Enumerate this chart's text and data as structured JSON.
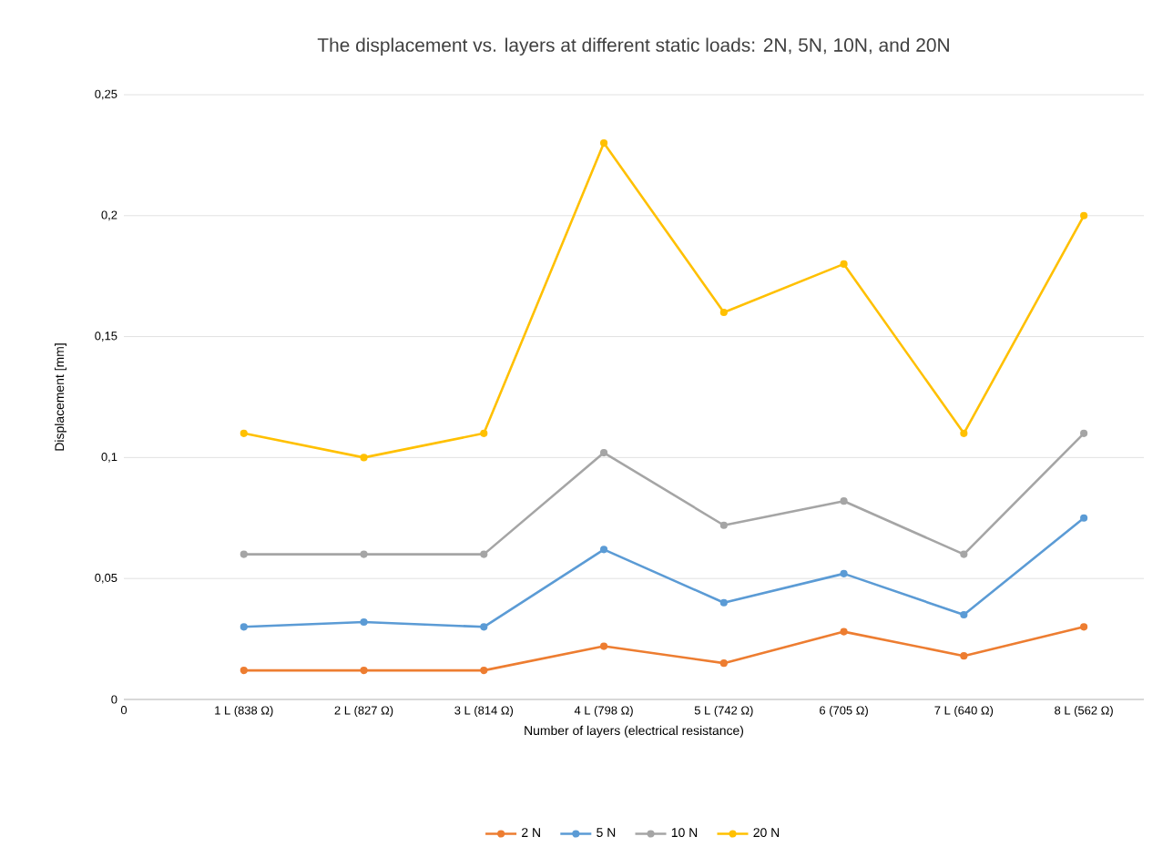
{
  "chart_data": {
    "type": "line",
    "title": "The displacement vs. layers at different static loads: 2N, 5N, 10N, and 20N",
    "xlabel": "Number of layers (electrical resistance)",
    "ylabel": "Displacement [mm]",
    "categories": [
      "0",
      "1 L (838 Ω)",
      "2 L (827 Ω)",
      "3 L (814 Ω)",
      "4 L (798 Ω)",
      "5 L (742 Ω)",
      "6  (705 Ω)",
      "7 L (640 Ω)",
      "8 L (562 Ω)"
    ],
    "series": [
      {
        "name": "2 N",
        "color": "#ed7d31",
        "values": [
          null,
          0.012,
          0.012,
          0.012,
          0.022,
          0.015,
          0.028,
          0.018,
          0.03
        ]
      },
      {
        "name": "5 N",
        "color": "#5b9bd5",
        "values": [
          null,
          0.03,
          0.032,
          0.03,
          0.062,
          0.04,
          0.052,
          0.035,
          0.075
        ]
      },
      {
        "name": "10 N",
        "color": "#a5a5a5",
        "values": [
          null,
          0.06,
          0.06,
          0.06,
          0.102,
          0.072,
          0.082,
          0.06,
          0.11
        ]
      },
      {
        "name": "20 N",
        "color": "#ffc000",
        "values": [
          null,
          0.11,
          0.1,
          0.11,
          0.23,
          0.16,
          0.18,
          0.11,
          0.2
        ]
      }
    ],
    "ylim": [
      0,
      0.25
    ],
    "yticks": [
      0,
      {
        "value": 0.05,
        "label": "0,05"
      },
      {
        "value": 0.1,
        "label": "0,1"
      },
      {
        "value": 0.15,
        "label": "0,15"
      },
      {
        "value": 0.2,
        "label": "0,2"
      },
      {
        "value": 0.25,
        "label": "0,25"
      }
    ],
    "grid": "y",
    "legend": "bottom",
    "marker": "circle",
    "line_style": "solid"
  }
}
